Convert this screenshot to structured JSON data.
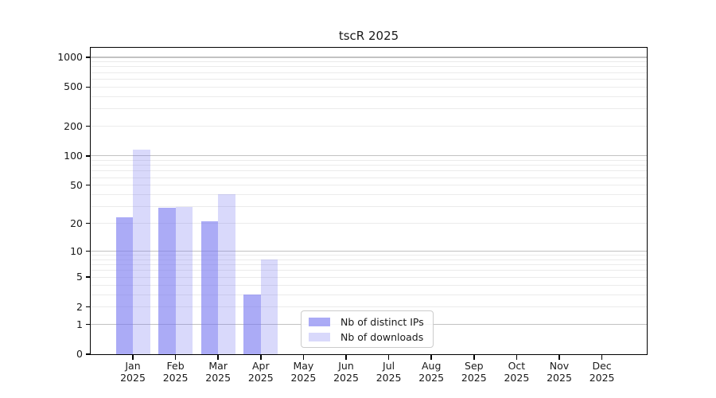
{
  "title": "tscR 2025",
  "chart_data": {
    "type": "bar",
    "title": "tscR 2025",
    "categories": [
      "Jan 2025",
      "Feb 2025",
      "Mar 2025",
      "Apr 2025",
      "May 2025",
      "Jun 2025",
      "Jul 2025",
      "Aug 2025",
      "Sep 2025",
      "Oct 2025",
      "Nov 2025",
      "Dec 2025"
    ],
    "series": [
      {
        "name": "Nb of distinct IPs",
        "color": "rgba(120,120,240,0.62)",
        "values": [
          23,
          29,
          21,
          3,
          0,
          0,
          0,
          0,
          0,
          0,
          0,
          0
        ]
      },
      {
        "name": "Nb of downloads",
        "color": "rgba(120,120,240,0.28)",
        "values": [
          115,
          30,
          40,
          8,
          0,
          0,
          0,
          0,
          0,
          0,
          0,
          0
        ]
      }
    ],
    "xlabel": "",
    "ylabel": "",
    "yscale": "log1p",
    "yticks": [
      0,
      1,
      2,
      5,
      10,
      20,
      50,
      100,
      200,
      500,
      1000
    ],
    "ylim": [
      0,
      1290
    ],
    "grid": "horizontal",
    "legend_position": "lower-center"
  },
  "colors": {
    "background": "#ffffff",
    "axis": "#000000",
    "text": "#1a1a1a",
    "grid_minor": "#ebebeb",
    "grid_major": "#c2c2c2",
    "legend_border": "#cccccc",
    "legend_background": "rgba(255,255,255,0.85)"
  }
}
